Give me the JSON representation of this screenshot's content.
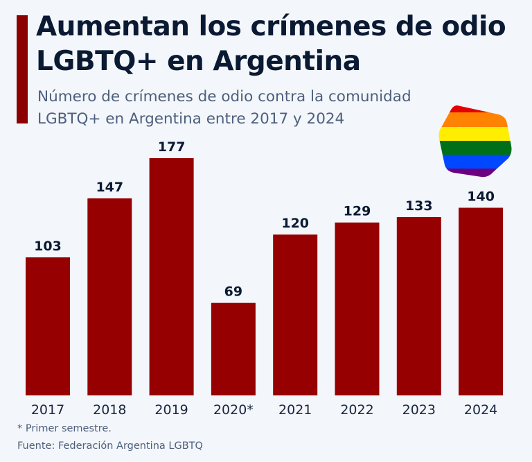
{
  "title": "Aumentan los crímenes de odio LGBTQ+ en Argentina",
  "subtitle": "Número de crímenes de odio contra la comunidad LGBTQ+ en Argentina entre 2017 y 2024",
  "note": "* Primer semestre.",
  "source": "Fuente: Federación Argentina LGBTQ",
  "logo_icon": "rainbow-pride-flag-hexagon-icon",
  "colors": {
    "bar": "#960000",
    "accent": "#8b0000",
    "text": "#0b1a33"
  },
  "chart_data": {
    "type": "bar",
    "title": "Aumentan los crímenes de odio LGBTQ+ en Argentina",
    "categories": [
      "2017",
      "2018",
      "2019",
      "2020*",
      "2021",
      "2022",
      "2023",
      "2024"
    ],
    "values": [
      103,
      147,
      177,
      69,
      120,
      129,
      133,
      140
    ],
    "xlabel": "",
    "ylabel": "",
    "ylim": [
      0,
      177
    ],
    "grid": false,
    "data_labels": true
  }
}
